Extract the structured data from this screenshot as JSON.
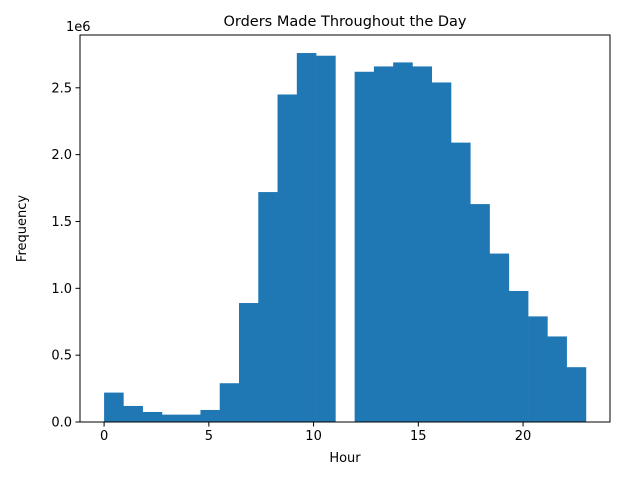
{
  "chart_data": {
    "type": "bar",
    "title": "Orders Made Throughout the Day",
    "xlabel": "Hour",
    "ylabel": "Frequency",
    "y_offset_text": "1e6",
    "xlim": [
      -1.15,
      24.15
    ],
    "ylim": [
      0,
      2895000
    ],
    "x_ticks": [
      0,
      5,
      10,
      15,
      20
    ],
    "y_ticks": [
      0,
      500000,
      1000000,
      1500000,
      2000000,
      2500000
    ],
    "y_tick_labels": [
      "0.0",
      "0.5",
      "1.0",
      "1.5",
      "2.0",
      "2.5"
    ],
    "bin_width": 0.92,
    "bins": [
      {
        "start": 0.0,
        "value": 220000
      },
      {
        "start": 0.92,
        "value": 120000
      },
      {
        "start": 1.84,
        "value": 75000
      },
      {
        "start": 2.76,
        "value": 55000
      },
      {
        "start": 3.68,
        "value": 55000
      },
      {
        "start": 4.6,
        "value": 90000
      },
      {
        "start": 5.52,
        "value": 290000
      },
      {
        "start": 6.44,
        "value": 890000
      },
      {
        "start": 7.36,
        "value": 1720000
      },
      {
        "start": 8.28,
        "value": 2450000
      },
      {
        "start": 9.2,
        "value": 2760000
      },
      {
        "start": 10.12,
        "value": 2740000
      },
      {
        "start": 11.04,
        "value": 0
      },
      {
        "start": 11.96,
        "value": 2620000
      },
      {
        "start": 12.88,
        "value": 2660000
      },
      {
        "start": 13.8,
        "value": 2690000
      },
      {
        "start": 14.72,
        "value": 2660000
      },
      {
        "start": 15.64,
        "value": 2540000
      },
      {
        "start": 16.56,
        "value": 2090000
      },
      {
        "start": 17.48,
        "value": 1630000
      },
      {
        "start": 18.4,
        "value": 1260000
      },
      {
        "start": 19.32,
        "value": 980000
      },
      {
        "start": 20.24,
        "value": 790000
      },
      {
        "start": 21.16,
        "value": 640000
      },
      {
        "start": 22.08,
        "value": 410000
      }
    ],
    "bar_color": "#1f77b4",
    "grid": false,
    "legend": "none"
  }
}
